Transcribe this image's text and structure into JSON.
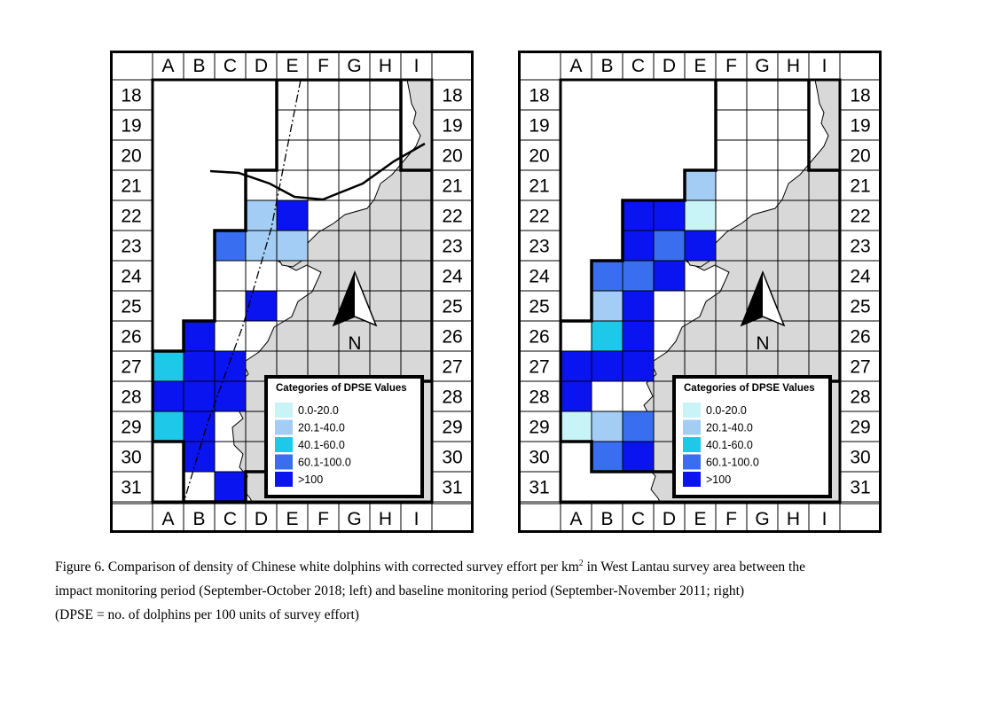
{
  "grid": {
    "columns": [
      "A",
      "B",
      "C",
      "D",
      "E",
      "F",
      "G",
      "H",
      "I"
    ],
    "rows": [
      "18",
      "19",
      "20",
      "21",
      "22",
      "23",
      "24",
      "25",
      "26",
      "27",
      "28",
      "29",
      "30",
      "31"
    ]
  },
  "colors": {
    "cat_0_20": "#c8f4f8",
    "cat_20_40": "#a3cdf5",
    "cat_40_60": "#1ec8e8",
    "cat_60_100": "#3a6ef0",
    "cat_gt100": "#0a14f0",
    "land": "#d8d8d8"
  },
  "legend": {
    "title": "Categories of DPSE Values",
    "items": [
      {
        "label": "0.0-20.0",
        "color": "#c8f4f8"
      },
      {
        "label": "20.1-40.0",
        "color": "#a3cdf5"
      },
      {
        "label": "40.1-60.0",
        "color": "#1ec8e8"
      },
      {
        "label": "60.1-100.0",
        "color": "#3a6ef0"
      },
      {
        "label": ">100",
        "color": "#0a14f0"
      }
    ]
  },
  "north_label": "N",
  "maps": [
    {
      "period": "impact monitoring period (September-October 2018)",
      "survey_cells": [
        "E18",
        "F18",
        "G18",
        "H18",
        "E19",
        "F19",
        "G19",
        "H19",
        "E20",
        "F20",
        "G20",
        "H20",
        "D21",
        "E21",
        "F21",
        "G21",
        "H21",
        "I21",
        "D22",
        "E22",
        "F22",
        "G22",
        "H22",
        "I22",
        "C23",
        "D23",
        "E23",
        "F23",
        "G23",
        "H23",
        "I23",
        "C24",
        "D24",
        "E24",
        "F24",
        "G24",
        "H24",
        "I24",
        "C25",
        "D25",
        "E25",
        "F25",
        "G25",
        "H25",
        "I25",
        "B26",
        "C26",
        "D26",
        "E26",
        "F26",
        "G26",
        "H26",
        "I26",
        "A27",
        "B27",
        "C27",
        "D27",
        "E27",
        "F27",
        "G27",
        "H27",
        "I27",
        "A28",
        "B28",
        "C28",
        "D28",
        "A29",
        "B29",
        "C29",
        "D29",
        "B30",
        "C30",
        "D30",
        "B31",
        "C31"
      ],
      "cell_values": {
        "D22": "20.1-40.0",
        "E22": ">100",
        "C23": "60.1-100.0",
        "D23": "20.1-40.0",
        "E23": "20.1-40.0",
        "D25": ">100",
        "B26": ">100",
        "A27": "40.1-60.0",
        "B27": ">100",
        "C27": ">100",
        "A28": ">100",
        "B28": ">100",
        "C28": ">100",
        "A29": "40.1-60.0",
        "B29": ">100",
        "B30": ">100",
        "C31": ">100"
      }
    },
    {
      "period": "baseline monitoring period (September-November 2011)",
      "survey_cells": [
        "F18",
        "G18",
        "H18",
        "F19",
        "G19",
        "H19",
        "F20",
        "G20",
        "H20",
        "E21",
        "F21",
        "G21",
        "H21",
        "I21",
        "D22",
        "E22",
        "F22",
        "G22",
        "H22",
        "I22",
        "C23",
        "D23",
        "E23",
        "F23",
        "G23",
        "H23",
        "I23",
        "B24",
        "C24",
        "D24",
        "E24",
        "F24",
        "G24",
        "H24",
        "I24",
        "B25",
        "C25",
        "D25",
        "E25",
        "F25",
        "G25",
        "H25",
        "I25",
        "A26",
        "B26",
        "C26",
        "D26",
        "E26",
        "F26",
        "G26",
        "H26",
        "I26",
        "A27",
        "B27",
        "C27",
        "D27",
        "E27",
        "F27",
        "G27",
        "H27",
        "I27",
        "A28",
        "B28",
        "C28",
        "D28",
        "A29",
        "B29",
        "C29",
        "D29",
        "B30",
        "C30",
        "D30"
      ],
      "cell_values": {
        "E21": "20.1-40.0",
        "C22": ">100",
        "D22": ">100",
        "E22": "0.0-20.0",
        "C23": ">100",
        "D23": "60.1-100.0",
        "E23": ">100",
        "B24": "60.1-100.0",
        "C24": "60.1-100.0",
        "D24": ">100",
        "B25": "20.1-40.0",
        "C25": ">100",
        "B26": "40.1-60.0",
        "C26": ">100",
        "A27": ">100",
        "B27": ">100",
        "C27": ">100",
        "A28": ">100",
        "A29": "0.0-20.0",
        "B29": "20.1-40.0",
        "C29": "60.1-100.0",
        "B30": "60.1-100.0",
        "C30": ">100"
      }
    }
  ],
  "caption": {
    "line1": "Figure 6.  Comparison of density of Chinese white dolphins with corrected survey effort per km",
    "line1_sup": "2",
    "line1_rest": " in West Lantau survey area between the",
    "line2": "impact monitoring period (September-October 2018; left) and baseline monitoring period (September-November 2011; right)",
    "line3": "(DPSE = no. of dolphins per 100 units of survey effort)"
  }
}
